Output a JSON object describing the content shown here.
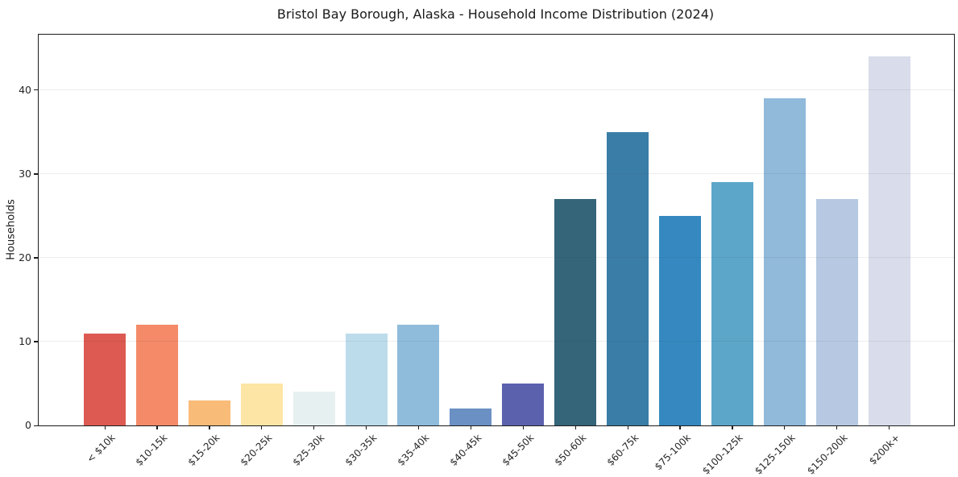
{
  "figure": {
    "title": "Bristol Bay Borough, Alaska - Household Income Distribution (2024)"
  },
  "chart_data": {
    "type": "bar",
    "title": "Bristol Bay Borough, Alaska - Household Income Distribution (2024)",
    "xlabel": "",
    "ylabel": "Households",
    "categories": [
      "< $10k",
      "$10-15k",
      "$15-20k",
      "$20-25k",
      "$25-30k",
      "$30-35k",
      "$35-40k",
      "$40-45k",
      "$45-50k",
      "$50-60k",
      "$60-75k",
      "$75-100k",
      "$100-125k",
      "$125-150k",
      "$150-200k",
      "$200k+"
    ],
    "values": [
      11,
      12,
      3,
      5,
      4,
      11,
      12,
      2,
      5,
      27,
      35,
      25,
      29,
      39,
      27,
      44
    ],
    "bar_colors": [
      "#dc5a52",
      "#f48a68",
      "#f9bb78",
      "#fde5a5",
      "#e6f0f0",
      "#bcdcec",
      "#90bcdc",
      "#6b90c4",
      "#5c61ae",
      "#356579",
      "#3a7da6",
      "#3589c0",
      "#5ca6c9",
      "#90b9da",
      "#b7c9e2",
      "#d9dcea"
    ],
    "yticks": [
      0,
      10,
      20,
      30,
      40
    ],
    "ylim": [
      0,
      46.6
    ],
    "grid": "horizontal",
    "legend": "none",
    "background": "#ffffff",
    "spine_color": "#1c1c1c",
    "grid_color": "rgba(60,60,70,0.09)",
    "xtick_rotation_deg": -45
  }
}
